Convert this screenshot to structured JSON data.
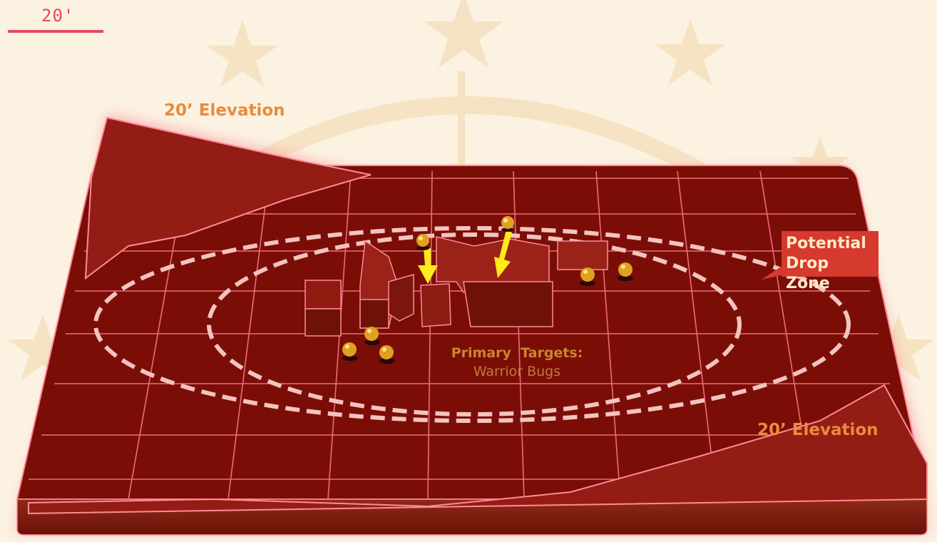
{
  "scale": {
    "label": "20'"
  },
  "labels": {
    "elevation_top": "20’ Elevation",
    "elevation_bottom": "20’ Elevation",
    "drop_zone_line1": "Potential",
    "drop_zone_line2": "Drop Zone",
    "targets_line1": "Primary  Targets:",
    "targets_line2": "Warrior Bugs"
  },
  "colors": {
    "background": "#fbf2e2",
    "board": "#7a0e06",
    "grid": "#f06a7c",
    "ridge": "#931d14",
    "accent_label": "#ea8a3e",
    "drop_zone_box": "#d6392e",
    "arrow": "#ffea1a",
    "bug": "#e0a020"
  },
  "icons": {
    "bug": "bug-icon",
    "arrow": "arrow-down-icon",
    "star": "star-icon"
  }
}
